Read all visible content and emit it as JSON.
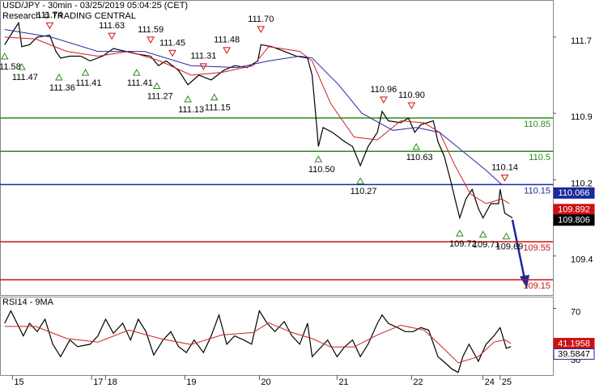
{
  "chart_data": [
    {
      "type": "line",
      "title": "USD/JPY - 30min - 03/25/2019 05:04:25 (CET)",
      "subtitle": "Research © TRADING CENTRAL",
      "xlim": [
        -3,
        353
      ],
      "ylim": [
        108.99,
        112.09
      ],
      "yticks": [
        111.7,
        110.9,
        110.2,
        109.4
      ],
      "series": [
        {
          "color": "#000000",
          "x": [
            0,
            5,
            9,
            11,
            16,
            21,
            29,
            33,
            36,
            42,
            49,
            55,
            63,
            70,
            78,
            86,
            94,
            99,
            104,
            112,
            118,
            125,
            133,
            141,
            148,
            156,
            163,
            165,
            172,
            180,
            188,
            195,
            198,
            201,
            202,
            205,
            211,
            219,
            224,
            229,
            234,
            240,
            243,
            247,
            255,
            260,
            264,
            268,
            276,
            279,
            283,
            287,
            290,
            293,
            297,
            301,
            305,
            308,
            313,
            318,
            319,
            322,
            327
          ],
          "values": [
            111.62,
            111.75,
            111.85,
            111.6,
            111.62,
            111.7,
            111.72,
            111.55,
            111.48,
            111.5,
            111.5,
            111.45,
            111.5,
            111.58,
            111.55,
            111.52,
            111.5,
            111.4,
            111.45,
            111.35,
            111.2,
            111.3,
            111.25,
            111.35,
            111.4,
            111.38,
            111.45,
            111.62,
            111.6,
            111.55,
            111.5,
            111.48,
            111.3,
            110.75,
            110.55,
            110.75,
            110.7,
            110.6,
            110.55,
            110.35,
            110.55,
            110.7,
            110.92,
            110.82,
            110.8,
            110.85,
            110.7,
            110.78,
            110.82,
            110.6,
            110.45,
            110.2,
            110.0,
            109.8,
            110.0,
            110.1,
            109.9,
            109.8,
            109.95,
            109.95,
            110.1,
            109.85,
            109.8
          ]
        },
        {
          "color": "#cc2222",
          "x": [
            0,
            20,
            40,
            60,
            80,
            100,
            120,
            140,
            160,
            170,
            190,
            198,
            210,
            225,
            240,
            255,
            270,
            280,
            290,
            300,
            310,
            320,
            325
          ],
          "values": [
            111.7,
            111.68,
            111.55,
            111.5,
            111.55,
            111.45,
            111.3,
            111.33,
            111.4,
            111.6,
            111.55,
            111.45,
            111.0,
            110.65,
            110.62,
            110.82,
            110.8,
            110.7,
            110.35,
            110.05,
            109.95,
            110.0,
            109.95
          ]
        },
        {
          "color": "#2a2aa0",
          "x": [
            0,
            30,
            60,
            90,
            120,
            150,
            170,
            190,
            198,
            215,
            230,
            250,
            265,
            280,
            295,
            310,
            320
          ],
          "values": [
            111.78,
            111.7,
            111.55,
            111.55,
            111.4,
            111.38,
            111.45,
            111.5,
            111.48,
            111.2,
            110.9,
            110.72,
            110.75,
            110.7,
            110.5,
            110.3,
            110.15
          ]
        }
      ],
      "levels": [
        {
          "value": 110.85,
          "color": "#2e8b1e"
        },
        {
          "value": 110.5,
          "color": "#2e8b1e"
        },
        {
          "value": 110.15,
          "color": "#1a2a9c"
        },
        {
          "value": 109.55,
          "color": "#cc1111"
        },
        {
          "value": 109.15,
          "color": "#cc1111"
        }
      ],
      "price_tags": [
        {
          "value": 110.066,
          "color": "#1a2a9c"
        },
        {
          "value": 109.892,
          "color": "#cc1111"
        },
        {
          "value": 109.806,
          "color": "#000000"
        }
      ],
      "annotations": [
        {
          "x": 0,
          "value": 111.58,
          "label": "111.58",
          "kind": "low"
        },
        {
          "x": 29,
          "value": 111.74,
          "label": "111.74",
          "kind": "high"
        },
        {
          "x": 11,
          "value": 111.47,
          "label": "111.47",
          "kind": "low"
        },
        {
          "x": 35,
          "value": 111.36,
          "label": "111.36",
          "kind": "low"
        },
        {
          "x": 52,
          "value": 111.41,
          "label": "111.41",
          "kind": "low"
        },
        {
          "x": 69,
          "value": 111.63,
          "label": "111.63",
          "kind": "high"
        },
        {
          "x": 85,
          "value": 111.41,
          "label": "111.41",
          "kind": "low"
        },
        {
          "x": 94,
          "value": 111.59,
          "label": "111.59",
          "kind": "high"
        },
        {
          "x": 108,
          "value": 111.45,
          "label": "111.45",
          "kind": "high"
        },
        {
          "x": 98,
          "value": 111.27,
          "label": "111.27",
          "kind": "low"
        },
        {
          "x": 118,
          "value": 111.13,
          "label": "111.13",
          "kind": "low"
        },
        {
          "x": 128,
          "value": 111.31,
          "label": "111.31",
          "kind": "high"
        },
        {
          "x": 135,
          "value": 111.15,
          "label": "111.15",
          "kind": "low"
        },
        {
          "x": 143,
          "value": 111.48,
          "label": "111.48",
          "kind": "high"
        },
        {
          "x": 165,
          "value": 111.7,
          "label": "111.70",
          "kind": "high"
        },
        {
          "x": 202,
          "value": 110.5,
          "label": "110.50",
          "kind": "low"
        },
        {
          "x": 229,
          "value": 110.27,
          "label": "110.27",
          "kind": "low"
        },
        {
          "x": 244,
          "value": 110.96,
          "label": "110.96",
          "kind": "high"
        },
        {
          "x": 262,
          "value": 110.9,
          "label": "110.90",
          "kind": "high"
        },
        {
          "x": 265,
          "value": 110.63,
          "label": "110.63",
          "kind": "low"
        },
        {
          "x": 322,
          "value": 110.14,
          "label": "110.14",
          "kind": "high"
        },
        {
          "x": 293,
          "value": 109.72,
          "label": "109.72",
          "kind": "low"
        },
        {
          "x": 308,
          "value": 109.71,
          "label": "109.71",
          "kind": "low"
        },
        {
          "x": 323,
          "value": 109.69,
          "label": "109.69",
          "kind": "low"
        }
      ]
    },
    {
      "type": "line",
      "title": "RSI14 - 9MA",
      "xlim": [
        -3,
        353
      ],
      "ylim": [
        14.8,
        79.7
      ],
      "yticks": [
        70,
        30
      ],
      "xticks": [
        {
          "value": 5,
          "label": "15"
        },
        {
          "value": 56,
          "label": "17"
        },
        {
          "value": 65,
          "label": "18"
        },
        {
          "value": 116,
          "label": "19"
        },
        {
          "value": 164,
          "label": "20"
        },
        {
          "value": 214,
          "label": "21"
        },
        {
          "value": 262,
          "label": "22"
        },
        {
          "value": 308,
          "label": "24"
        },
        {
          "value": 319,
          "label": "25"
        }
      ],
      "series": [
        {
          "color": "#000000",
          "x": [
            0,
            4,
            8,
            12,
            16,
            21,
            26,
            31,
            36,
            42,
            47,
            55,
            60,
            65,
            70,
            76,
            81,
            86,
            91,
            96,
            102,
            107,
            112,
            117,
            122,
            128,
            133,
            138,
            143,
            148,
            154,
            159,
            164,
            169,
            174,
            180,
            185,
            190,
            195,
            198,
            203,
            208,
            214,
            219,
            224,
            229,
            234,
            240,
            243,
            247,
            253,
            258,
            263,
            268,
            273,
            279,
            284,
            288,
            292,
            295,
            299,
            305,
            310,
            315,
            319,
            323,
            326
          ],
          "values": [
            57.6,
            67.9,
            57.6,
            47.2,
            57.6,
            50.7,
            61,
            40.3,
            30,
            43.8,
            38.3,
            40.3,
            47.2,
            61,
            49.3,
            57.6,
            43.8,
            61,
            50.7,
            31.4,
            43.8,
            50.7,
            38.3,
            33.4,
            43.8,
            33.4,
            47.2,
            64.5,
            40.3,
            47.2,
            43.8,
            40.3,
            67.9,
            57.6,
            50.7,
            59,
            47.2,
            40.3,
            57.6,
            30,
            36.9,
            43.8,
            30,
            38.3,
            43.8,
            30,
            40.3,
            57.6,
            64.5,
            57.6,
            54.1,
            50.7,
            50.7,
            54.1,
            52,
            30,
            24.5,
            19.7,
            17,
            30,
            40.3,
            26.2,
            40.3,
            47.2,
            54.1,
            36.9,
            38.3
          ]
        },
        {
          "color": "#cc2222",
          "x": [
            0,
            20,
            40,
            60,
            80,
            100,
            120,
            140,
            160,
            170,
            185,
            198,
            210,
            225,
            240,
            255,
            270,
            280,
            292,
            305,
            315,
            322,
            326
          ],
          "values": [
            55,
            55,
            45,
            42,
            52,
            45,
            40,
            48,
            50,
            58,
            50,
            45,
            38,
            38,
            48,
            56,
            52,
            40,
            25,
            30,
            42,
            44,
            41
          ]
        }
      ],
      "tags": [
        {
          "value": 41.1958,
          "color": "#cc1111"
        },
        {
          "value": 39.5847,
          "color": "#1a2a9c"
        }
      ]
    }
  ]
}
